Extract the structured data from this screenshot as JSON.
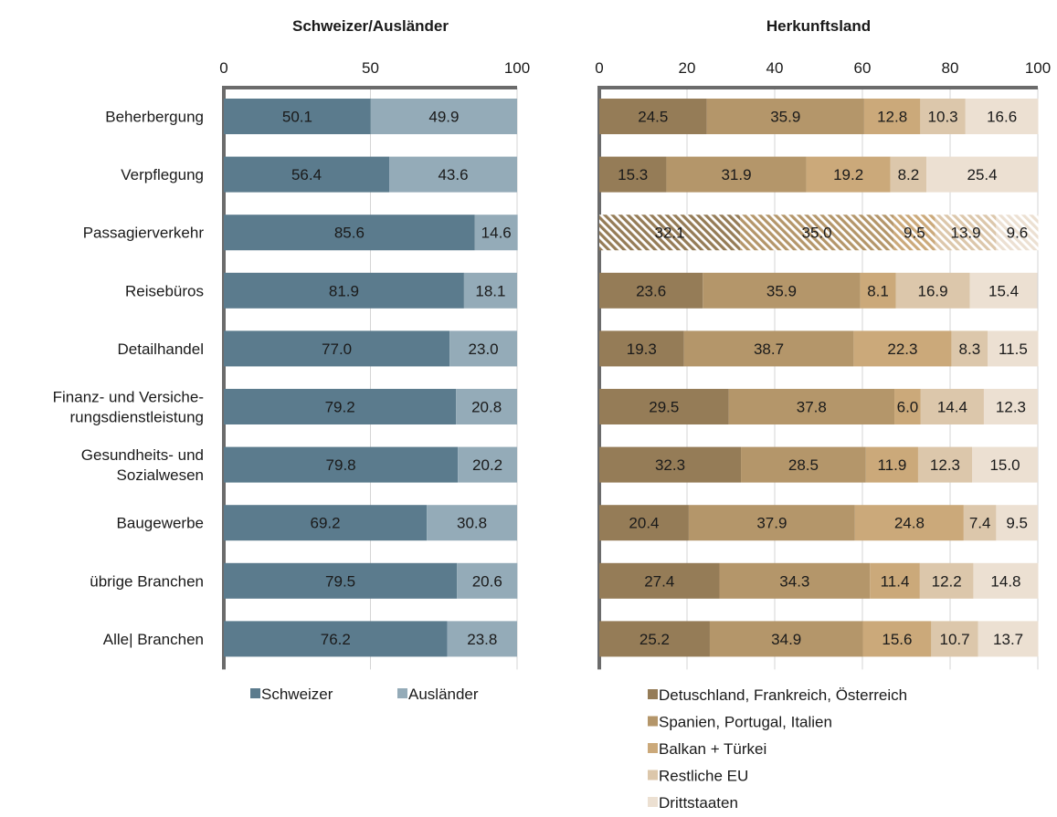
{
  "chart_data": [
    {
      "type": "bar",
      "orientation": "horizontal",
      "stacked": true,
      "title": "Schweizer/Ausländer",
      "xlim": [
        0,
        100
      ],
      "xticks": [
        "0",
        "50",
        "100"
      ],
      "grid": true,
      "legend_position": "bottom",
      "categories": [
        "Beherbergung",
        "Verpflegung",
        "Passagierverkehr",
        "Reisebüros",
        "Detailhandel",
        "Finanz- und Versiche- rungsdienstleistung",
        "Gesundheits- und Sozialwesen",
        "Baugewerbe",
        "übrige Branchen",
        "Alle| Branchen"
      ],
      "category_lines": [
        [
          "Beherbergung"
        ],
        [
          "Verpflegung"
        ],
        [
          "Passagierverkehr"
        ],
        [
          "Reisebüros"
        ],
        [
          "Detailhandel"
        ],
        [
          "Finanz- und Versiche-",
          "rungsdienstleistung"
        ],
        [
          "Gesundheits- und",
          "Sozialwesen"
        ],
        [
          "Baugewerbe"
        ],
        [
          "übrige Branchen"
        ],
        [
          "Alle| Branchen"
        ]
      ],
      "series": [
        {
          "name": "Schweizer",
          "color": "#5b7b8d",
          "values": [
            50.1,
            56.4,
            85.6,
            81.9,
            77.0,
            79.2,
            79.8,
            69.2,
            79.5,
            76.2
          ],
          "labels": [
            "50.1",
            "56.4",
            "85.6",
            "81.9",
            "77.0",
            "79.2",
            "79.8",
            "69.2",
            "79.5",
            "76.2"
          ]
        },
        {
          "name": "Ausländer",
          "color": "#94abb8",
          "values": [
            49.9,
            43.6,
            14.6,
            18.1,
            23.0,
            20.8,
            20.2,
            30.8,
            20.6,
            23.8
          ],
          "labels": [
            "49.9",
            "43.6",
            "14.6",
            "18.1",
            "23.0",
            "20.8",
            "20.2",
            "30.8",
            "20.6",
            "23.8"
          ]
        }
      ]
    },
    {
      "type": "bar",
      "orientation": "horizontal",
      "stacked": true,
      "title": "Herkunftsland",
      "xlim": [
        0,
        100
      ],
      "xticks": [
        "0",
        "20",
        "40",
        "60",
        "80",
        "100"
      ],
      "grid": true,
      "legend_position": "bottom",
      "hatched_category": "Passagierverkehr",
      "series": [
        {
          "name": "Detuschland, Frankreich, Österreich",
          "color": "#957c57",
          "values": [
            24.5,
            15.3,
            32.1,
            23.6,
            19.3,
            29.5,
            32.3,
            20.4,
            27.4,
            25.2
          ],
          "labels": [
            "24.5",
            "15.3",
            "32.1",
            "23.6",
            "19.3",
            "29.5",
            "32.3",
            "20.4",
            "27.4",
            "25.2"
          ]
        },
        {
          "name": "Spanien, Portugal, Italien",
          "color": "#b4966a",
          "values": [
            35.9,
            31.9,
            35.0,
            35.9,
            38.7,
            37.8,
            28.5,
            37.9,
            34.3,
            34.9
          ],
          "labels": [
            "35.9",
            "31.9",
            "35.0",
            "35.9",
            "38.7",
            "37.8",
            "28.5",
            "37.9",
            "34.3",
            "34.9"
          ]
        },
        {
          "name": "Balkan + Türkei",
          "color": "#cba97a",
          "values": [
            12.8,
            19.2,
            9.5,
            8.1,
            22.3,
            6.0,
            11.9,
            24.8,
            11.4,
            15.6
          ],
          "labels": [
            "12.8",
            "19.2",
            "9.5",
            "8.1",
            "22.3",
            "6.0",
            "11.9",
            "24.8",
            "11.4",
            "15.6"
          ]
        },
        {
          "name": "Restliche EU",
          "color": "#dcc7ab",
          "values": [
            10.3,
            8.2,
            13.9,
            16.9,
            8.3,
            14.4,
            12.3,
            7.4,
            12.2,
            10.7
          ],
          "labels": [
            "10.3",
            "8.2",
            "13.9",
            "16.9",
            "8.3",
            "14.4",
            "12.3",
            "7.4",
            "12.2",
            "10.7"
          ]
        },
        {
          "name": "Drittstaaten",
          "color": "#ece0d2",
          "values": [
            16.6,
            25.4,
            9.6,
            15.4,
            11.5,
            12.3,
            15.0,
            9.5,
            14.8,
            13.7
          ],
          "labels": [
            "16.6",
            "25.4",
            "9.6",
            "15.4",
            "11.5",
            "12.3",
            "15.0",
            "9.5",
            "14.8",
            "13.7"
          ]
        }
      ]
    }
  ]
}
